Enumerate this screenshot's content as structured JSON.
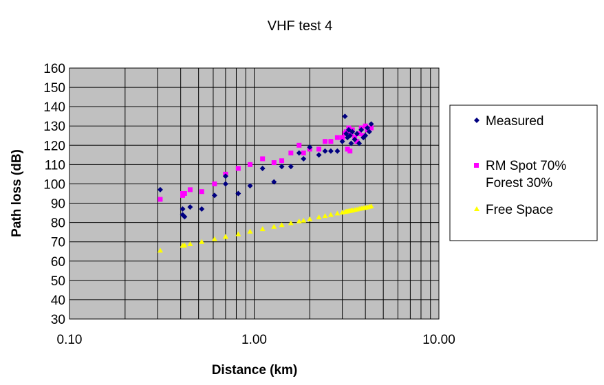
{
  "chart_data": {
    "type": "scatter",
    "title": "VHF test 4",
    "xlabel": "Distance (km)",
    "ylabel": "Path loss (dB)",
    "xscale": "log",
    "xlim": [
      0.1,
      10
    ],
    "ylim": [
      30,
      160
    ],
    "xticks": [
      "0.10",
      "1.00",
      "10.00"
    ],
    "yticks": [
      "30",
      "40",
      "50",
      "60",
      "70",
      "80",
      "90",
      "100",
      "110",
      "120",
      "130",
      "140",
      "150",
      "160"
    ],
    "grid": true,
    "legend_position": "right",
    "colors": {
      "plot_bg": "#c0c0c0",
      "Measured": "#000080",
      "RM Spot 70% Forest 30%": "#ff00ff",
      "Free Space": "#ffff00"
    },
    "x": [
      0.31,
      0.41,
      0.41,
      0.42,
      0.45,
      0.52,
      0.61,
      0.7,
      0.7,
      0.82,
      0.95,
      1.11,
      1.28,
      1.41,
      1.58,
      1.75,
      1.85,
      2.0,
      2.24,
      2.42,
      2.6,
      2.82,
      3.0,
      3.1,
      3.15,
      3.2,
      3.25,
      3.3,
      3.35,
      3.4,
      3.5,
      3.6,
      3.7,
      3.8,
      3.9,
      4.0,
      4.1,
      4.2,
      4.3
    ],
    "series": [
      {
        "name": "Measured",
        "marker": "diamond",
        "legend": [
          "Measured"
        ],
        "values": [
          97,
          87,
          84,
          83,
          88,
          87,
          94,
          100,
          104,
          95,
          99,
          108,
          101,
          109,
          109,
          116,
          113,
          119,
          115,
          117,
          117,
          117,
          122,
          135,
          126,
          124,
          128,
          125,
          121,
          127,
          123,
          126,
          121,
          128,
          124,
          125,
          129,
          127,
          131
        ]
      },
      {
        "name": "RM Spot 70% Forest 30%",
        "marker": "square",
        "legend": [
          "RM Spot 70%",
          "Forest 30%"
        ],
        "values": [
          92,
          95,
          94,
          95,
          97,
          96,
          100,
          105,
          105,
          108,
          110,
          113,
          111,
          112,
          116,
          120,
          116,
          118,
          118,
          122,
          122,
          124,
          124,
          126,
          127,
          118,
          129,
          117,
          126,
          128,
          124,
          122,
          126,
          129,
          125,
          130,
          128,
          129,
          129
        ]
      },
      {
        "name": "Free Space",
        "marker": "triangle",
        "legend": [
          "Free Space"
        ],
        "values": [
          65.5,
          68.0,
          68.0,
          68.2,
          68.8,
          70.0,
          71.4,
          72.6,
          72.6,
          74.0,
          75.3,
          76.6,
          77.8,
          78.7,
          79.7,
          80.6,
          81.0,
          81.7,
          82.7,
          83.4,
          84.0,
          84.7,
          85.2,
          85.5,
          85.7,
          85.8,
          85.9,
          86.1,
          86.2,
          86.3,
          86.6,
          86.8,
          87.1,
          87.3,
          87.5,
          87.7,
          87.9,
          88.2,
          88.4
        ]
      }
    ]
  }
}
